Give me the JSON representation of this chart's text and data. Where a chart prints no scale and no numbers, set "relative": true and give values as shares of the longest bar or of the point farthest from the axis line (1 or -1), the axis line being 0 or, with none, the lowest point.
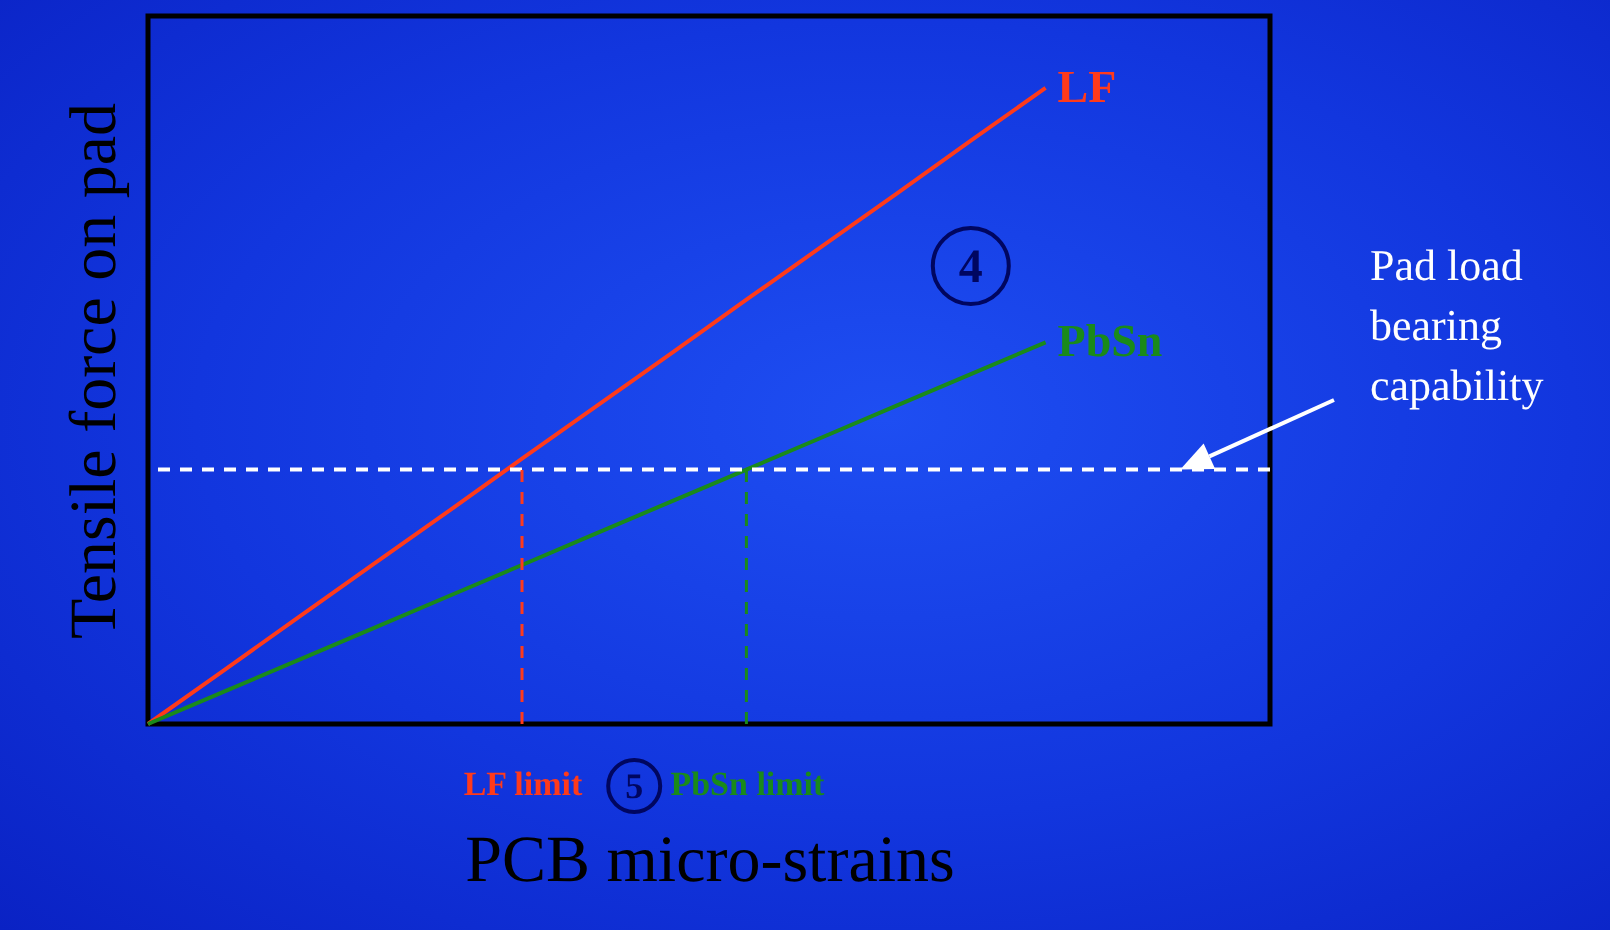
{
  "chart_data": {
    "type": "line",
    "relative": true,
    "xlabel": "PCB micro-strains",
    "ylabel": "Tensile force on pad",
    "tick_labels": "x",
    "categories": [
      null,
      null,
      null,
      null,
      null,
      "LF limit",
      null,
      null,
      "PbSn limit",
      null,
      null,
      null,
      null,
      null,
      null,
      null
    ],
    "series": [
      {
        "name": "LF",
        "color": "#ff3a1a",
        "values": [
          0,
          0.083,
          0.167,
          0.25,
          0.333,
          0.417,
          0.5,
          0.583,
          0.667,
          0.75,
          0.833,
          0.917,
          1,
          null,
          null,
          null
        ]
      },
      {
        "name": "PbSn",
        "color": "#1a8a1a",
        "values": [
          0,
          0.05,
          0.1,
          0.15,
          0.2,
          0.25,
          0.3,
          0.35,
          0.4,
          0.45,
          0.5,
          0.55,
          0.6,
          null,
          null,
          null
        ]
      }
    ],
    "ref_lines": [
      {
        "axis": "y",
        "value": 0.4,
        "color": "#ffffff",
        "line_style": "dashed",
        "label": "Pad load bearing capability"
      },
      {
        "axis": "x",
        "value": "LF limit",
        "color": "#ff3a1a",
        "line_style": "dashed"
      },
      {
        "axis": "x",
        "value": "PbSn limit",
        "color": "#1a8a1a",
        "line_style": "dashed"
      }
    ],
    "annotations": [
      {
        "text": "4",
        "y": 0.72
      },
      "5"
    ]
  }
}
